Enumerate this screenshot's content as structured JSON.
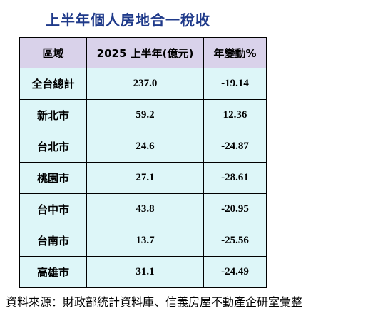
{
  "title": "上半年個人房地合一稅收",
  "table": {
    "headers": [
      "區域",
      "2025 上半年(億元)",
      "年變動%"
    ],
    "rows": [
      {
        "region": "全台總計",
        "amount": "237.0",
        "change": "-19.14"
      },
      {
        "region": "新北市",
        "amount": "59.2",
        "change": "12.36"
      },
      {
        "region": "台北市",
        "amount": "24.6",
        "change": "-24.87"
      },
      {
        "region": "桃園市",
        "amount": "27.1",
        "change": "-28.61"
      },
      {
        "region": "台中市",
        "amount": "43.8",
        "change": "-20.95"
      },
      {
        "region": "台南市",
        "amount": "13.7",
        "change": "-25.56"
      },
      {
        "region": "高雄市",
        "amount": "31.1",
        "change": "-24.49"
      }
    ]
  },
  "source": "資料來源：財政部統計資料庫、信義房屋不動產企研室彙整",
  "colors": {
    "title": "#1f3a8a",
    "header_bg": "#d9d2ea",
    "cell_bg": "#ddf6f8",
    "border": "#000000"
  }
}
